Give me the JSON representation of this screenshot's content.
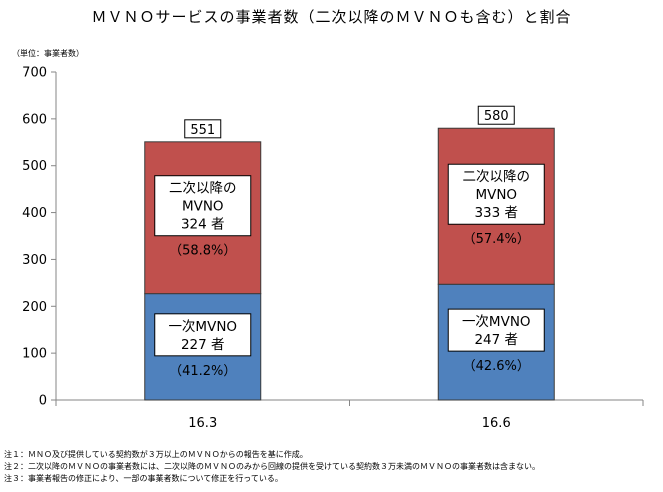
{
  "chart_data": {
    "type": "bar",
    "stacked": true,
    "title": "ＭＶＮＯサービスの事業者数（二次以降のＭＶＮＯも含む）と割合",
    "unit_label": "（単位：事業者数）",
    "categories": [
      "16.3",
      "16.6"
    ],
    "series": [
      {
        "values": [
          227,
          247
        ],
        "color": "#4f81bd",
        "labels": [
          "一次MVNO|227 者",
          "一次MVNO|247 者"
        ],
        "percents": [
          "（41.2%）",
          "（42.6%）"
        ]
      },
      {
        "values": [
          324,
          333
        ],
        "color": "#c0504d",
        "labels": [
          "二次以降の|MVNO|324 者",
          "二次以降の|MVNO|333 者"
        ],
        "percents": [
          "（58.8%）",
          "（57.4%）"
        ]
      }
    ],
    "totals": [
      "551",
      "580"
    ],
    "ylim": [
      0,
      700
    ],
    "yticks": [
      "0",
      "100",
      "200",
      "300",
      "400",
      "500",
      "600",
      "700"
    ],
    "grid": false,
    "legend": "none"
  },
  "notes": [
    "注１：ＭＮＯ及び提供している契約数が３万以上のＭＶＮＯからの報告を基に作成。",
    "注２：二次以降のＭＶＮＯの事業者数には、二次以降のＭＶＮＯのみから回線の提供を受けている契約数３万未満のＭＶＮＯの事業者数は含まない。",
    "注３：事業者報告の修正により、一部の事業者数について修正を行っている。"
  ]
}
